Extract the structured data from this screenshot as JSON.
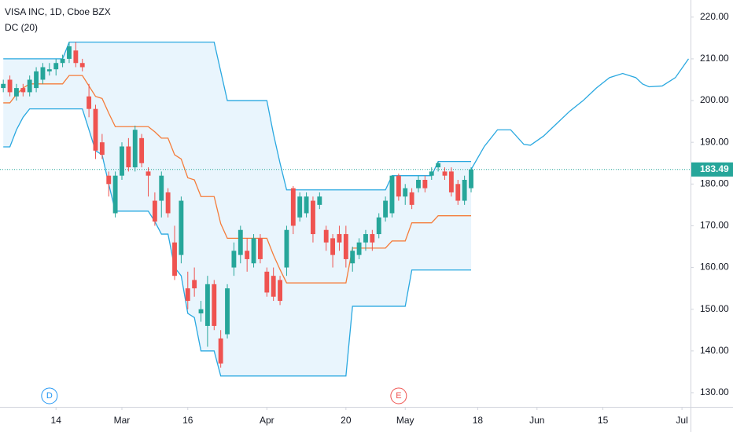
{
  "chart_data": {
    "type": "candlestick",
    "title": "VISA INC, 1D, Cboe BZX",
    "indicator_label": "DC (20)",
    "x": [
      0,
      1,
      2,
      3,
      4,
      5,
      6,
      7,
      8,
      9,
      10,
      11,
      12,
      13,
      14,
      15,
      16,
      17,
      18,
      19,
      20,
      21,
      22,
      23,
      24,
      25,
      26,
      27,
      28,
      29,
      30,
      31,
      32,
      33,
      34,
      35,
      36,
      37,
      38,
      39,
      40,
      41,
      42,
      43,
      44,
      45,
      46,
      47,
      48,
      49,
      50,
      51,
      52,
      53,
      54,
      55,
      56,
      57,
      58,
      59,
      60,
      61,
      62,
      63,
      64,
      65,
      66,
      67,
      68,
      69,
      70,
      71
    ],
    "open": [
      203,
      205,
      201,
      203,
      202,
      203,
      205,
      207,
      207.5,
      209,
      210,
      212,
      209,
      201,
      198,
      190,
      182,
      173,
      182,
      189,
      184,
      191,
      183,
      176,
      176,
      178,
      166,
      163,
      155,
      157,
      149,
      146,
      156,
      143,
      144,
      160,
      163,
      164,
      161,
      167,
      159,
      158,
      157,
      160,
      179,
      172,
      173,
      176,
      175,
      169,
      167,
      168,
      168,
      161,
      163,
      166,
      168,
      168,
      172,
      173,
      182,
      177,
      178,
      179,
      181,
      182,
      184,
      183,
      183,
      180,
      176,
      179
    ],
    "high": [
      205,
      206,
      204,
      204,
      206,
      208,
      209,
      209,
      210,
      211,
      214,
      214,
      210,
      204,
      199,
      192,
      183,
      183,
      190,
      191,
      194,
      192,
      184,
      178,
      183,
      179,
      170,
      177,
      159,
      160,
      152,
      158,
      157,
      145,
      156,
      166,
      170,
      167,
      168,
      168,
      160,
      160,
      158,
      170,
      179.5,
      178,
      178,
      177,
      178,
      170,
      168,
      170,
      170,
      165,
      167,
      169,
      169,
      173,
      177,
      182,
      182.5,
      180,
      179,
      182,
      182,
      184,
      185.4,
      184,
      184,
      181,
      182,
      184
    ],
    "low": [
      202,
      201,
      200,
      201,
      201,
      202,
      204,
      206,
      206,
      208,
      209,
      208,
      207,
      196,
      186,
      186,
      177,
      172,
      181,
      183,
      183,
      184,
      177,
      170,
      172,
      172,
      157,
      161,
      150,
      153,
      147,
      141,
      145,
      136,
      143,
      158,
      161,
      159,
      160,
      161,
      153,
      152,
      151,
      158,
      168,
      171,
      172,
      166,
      174,
      164,
      160,
      164,
      160,
      159,
      162,
      164,
      164,
      167,
      171,
      172,
      176,
      175,
      174,
      178,
      178,
      181,
      183,
      181,
      177,
      175,
      175,
      178
    ],
    "close": [
      204,
      202,
      203,
      202,
      205,
      207,
      208,
      207.5,
      209,
      210,
      213,
      209,
      208,
      198,
      188,
      187,
      180,
      182,
      189,
      184,
      193,
      185,
      182,
      171,
      182,
      173,
      158,
      176,
      152,
      155,
      150,
      156,
      146,
      137,
      155,
      164,
      169,
      162,
      167,
      162,
      154,
      153,
      152,
      169,
      170,
      177,
      177,
      168,
      177,
      166,
      163,
      166,
      162,
      164,
      166,
      168,
      166,
      172,
      176,
      182,
      177,
      179,
      175,
      181,
      179,
      183,
      185,
      182,
      178,
      176,
      181,
      183.49
    ],
    "up_color": "#26a69a",
    "down_color": "#ef5350",
    "channel": {
      "fill_color": "#e3f2fd",
      "upper": {
        "color": "#29a8e0",
        "values": [
          210,
          210,
          210,
          210,
          210,
          210,
          210,
          210,
          210,
          210,
          214,
          214,
          214,
          214,
          214,
          214,
          214,
          214,
          214,
          214,
          214,
          214,
          214,
          214,
          214,
          214,
          214,
          214,
          214,
          214,
          214,
          214,
          214,
          207,
          200,
          200,
          200,
          200,
          200,
          200,
          200,
          192,
          185,
          178.6,
          178.6,
          178.6,
          178.6,
          178.6,
          178.6,
          178.6,
          178.6,
          178.6,
          178.6,
          178.6,
          178.6,
          178.6,
          178.6,
          178.6,
          178.6,
          182,
          182,
          182,
          182,
          182,
          182,
          182,
          185.4,
          185.4,
          185.4,
          185.4,
          185.4,
          185.4
        ]
      },
      "middle": {
        "color": "#f57c3a",
        "values": [
          199.45,
          199.45,
          201.5,
          203,
          204,
          204,
          204,
          204,
          204,
          204,
          206,
          206,
          206,
          203.5,
          201,
          200.5,
          197,
          193.75,
          193.75,
          193.75,
          193.75,
          193.75,
          193.75,
          192.5,
          191,
          191,
          187,
          186,
          181.5,
          181,
          177,
          177,
          177,
          170.5,
          167,
          167,
          167,
          167,
          167,
          167,
          167,
          163,
          159.5,
          156.3,
          156.3,
          156.3,
          156.3,
          156.3,
          156.3,
          156.3,
          156.3,
          156.3,
          156.3,
          164.65,
          164.65,
          164.65,
          164.65,
          164.65,
          164.65,
          166.35,
          166.35,
          166.35,
          170.7,
          170.7,
          170.7,
          170.7,
          172.4,
          172.4,
          172.4,
          172.4,
          172.4,
          172.4
        ]
      },
      "lower": {
        "color": "#29a8e0",
        "values": [
          188.9,
          188.9,
          193,
          196,
          198,
          198,
          198,
          198,
          198,
          198,
          198,
          198,
          198,
          193,
          188,
          187,
          180,
          173.5,
          173.5,
          173.5,
          173.5,
          173.5,
          173.5,
          171,
          168,
          168,
          160,
          158,
          149,
          148,
          140,
          140,
          140,
          134,
          134,
          134,
          134,
          134,
          134,
          134,
          134,
          134,
          134,
          134,
          134,
          134,
          134,
          134,
          134,
          134,
          134,
          134,
          134,
          150.7,
          150.7,
          150.7,
          150.7,
          150.7,
          150.7,
          150.7,
          150.7,
          150.7,
          159.4,
          159.4,
          159.4,
          159.4,
          159.4,
          159.4,
          159.4,
          159.4,
          159.4,
          159.4
        ]
      }
    },
    "projection": {
      "color": "#29a8e0",
      "x": [
        71,
        73,
        75,
        77,
        79,
        80,
        82,
        84,
        86,
        88,
        90,
        92,
        94,
        96,
        97,
        98,
        100,
        102,
        104
      ],
      "values": [
        183.49,
        189,
        193,
        193,
        189.5,
        189.3,
        191.5,
        194.5,
        197.5,
        200,
        203,
        205.5,
        206.5,
        205.5,
        204,
        203.3,
        203.5,
        205.5,
        210
      ]
    },
    "last_price": 183.49,
    "last_price_color": "#26a69a",
    "events": [
      {
        "label": "D",
        "x": 7,
        "color": "#2196f3"
      },
      {
        "label": "E",
        "x": 60,
        "color": "#ef5350"
      }
    ],
    "xlim": [
      -0.5,
      104.3
    ],
    "ylim": [
      126.6,
      224.1
    ],
    "yticks": [
      {
        "value": 130,
        "label": "130.00"
      },
      {
        "value": 140,
        "label": "140.00"
      },
      {
        "value": 150,
        "label": "150.00"
      },
      {
        "value": 160,
        "label": "160.00"
      },
      {
        "value": 170,
        "label": "170.00"
      },
      {
        "value": 180,
        "label": "180.00"
      },
      {
        "value": 190,
        "label": "190.00"
      },
      {
        "value": 200,
        "label": "200.00"
      },
      {
        "value": 210,
        "label": "210.00"
      },
      {
        "value": 220,
        "label": "220.00"
      }
    ],
    "xticks": [
      {
        "value": 8,
        "label": "14"
      },
      {
        "value": 18,
        "label": "Mar"
      },
      {
        "value": 28,
        "label": "16"
      },
      {
        "value": 40,
        "label": "Apr"
      },
      {
        "value": 52,
        "label": "20"
      },
      {
        "value": 61,
        "label": "May"
      },
      {
        "value": 72,
        "label": "18"
      },
      {
        "value": 81,
        "label": "Jun"
      },
      {
        "value": 91,
        "label": "15"
      },
      {
        "value": 103,
        "label": "Jul"
      }
    ],
    "grid": false
  }
}
